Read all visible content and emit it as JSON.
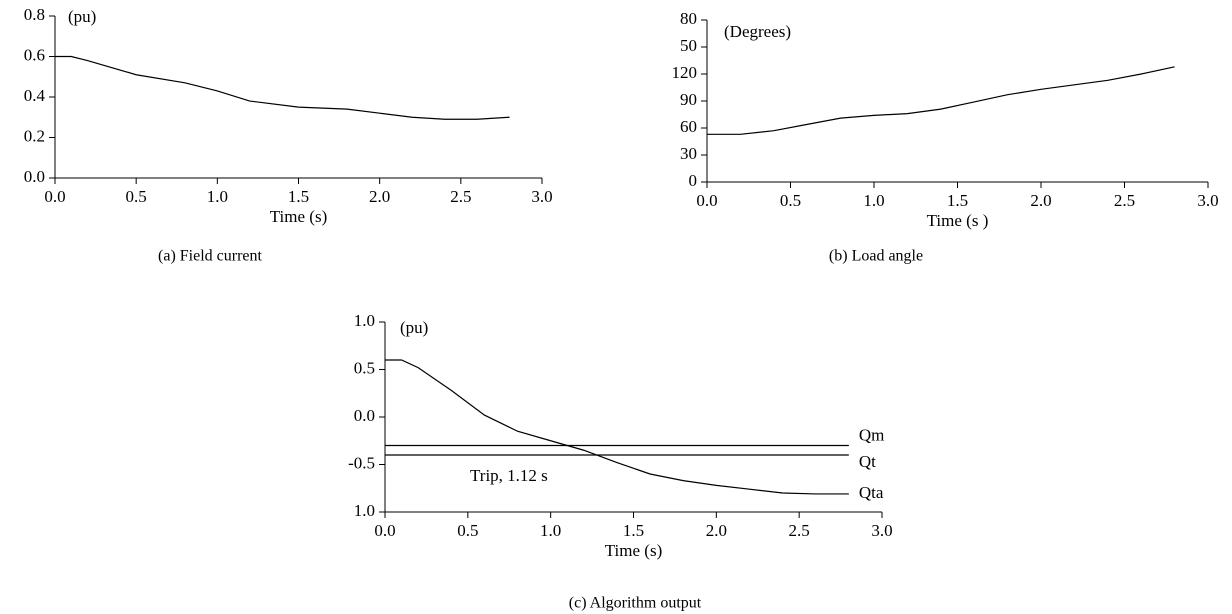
{
  "chart_data": [
    {
      "type": "line",
      "title": "(a) Field current",
      "ylabel": "(pu)",
      "xlabel": "Time (s)",
      "xlim": [
        0,
        3
      ],
      "ylim": [
        0,
        0.8
      ],
      "xticks": [
        {
          "value": 0,
          "label": "0.0"
        },
        0.5,
        {
          "value": 1,
          "label": "1.0"
        },
        1.5,
        {
          "value": 2,
          "label": "2.0"
        },
        2.5,
        {
          "value": 3,
          "label": "3.0"
        }
      ],
      "yticks": [
        {
          "value": 0,
          "label": "0.0"
        },
        0.2,
        0.4,
        0.6,
        0.8
      ],
      "series": [
        {
          "name": null,
          "color": "#000000",
          "x": [
            0,
            0.1,
            0.2,
            0.5,
            0.8,
            1.0,
            1.2,
            1.5,
            1.8,
            2.0,
            2.2,
            2.4,
            2.6,
            2.8
          ],
          "values": [
            0.6,
            0.6,
            0.58,
            0.51,
            0.47,
            0.43,
            0.38,
            0.35,
            0.34,
            0.32,
            0.3,
            0.29,
            0.29,
            0.3
          ]
        }
      ]
    },
    {
      "type": "line",
      "title": "(b) Load angle",
      "ylabel": "(Degrees)",
      "xlabel": "Time (s )",
      "xlim": [
        0,
        3
      ],
      "ylim": [
        0,
        180
      ],
      "xticks": [
        {
          "value": 0,
          "label": "0.0"
        },
        0.5,
        {
          "value": 1,
          "label": "1.0"
        },
        1.5,
        {
          "value": 2,
          "label": "2.0"
        },
        2.5,
        {
          "value": 3,
          "label": "3.0"
        }
      ],
      "yticks": [
        0,
        30,
        60,
        90,
        120,
        {
          "value": 150,
          "label": "50"
        },
        {
          "value": 180,
          "label": "80"
        }
      ],
      "series": [
        {
          "name": null,
          "color": "#000000",
          "x": [
            0,
            0.2,
            0.4,
            0.6,
            0.8,
            1.0,
            1.2,
            1.4,
            1.6,
            1.8,
            2.0,
            2.2,
            2.4,
            2.6,
            2.8
          ],
          "values": [
            53,
            53,
            57,
            64,
            71,
            74,
            76,
            81,
            89,
            97,
            103,
            108,
            113,
            120,
            128
          ]
        }
      ]
    },
    {
      "type": "line",
      "title": "(c) Algorithm output",
      "ylabel": "(pu)",
      "xlabel": "Time (s)",
      "annotation": "Trip, 1.12 s",
      "xlim": [
        0,
        3
      ],
      "ylim": [
        -1,
        1
      ],
      "xticks": [
        {
          "value": 0,
          "label": "0.0"
        },
        0.5,
        {
          "value": 1,
          "label": "1.0"
        },
        1.5,
        {
          "value": 2,
          "label": "2.0"
        },
        2.5,
        {
          "value": 3,
          "label": "3.0"
        }
      ],
      "yticks": [
        {
          "value": -1,
          "label": "1.0"
        },
        -0.5,
        {
          "value": 0,
          "label": "0.0"
        },
        0.5,
        {
          "value": 1,
          "label": "1.0"
        }
      ],
      "series": [
        {
          "name": "Qm",
          "color": "#000000",
          "x": [
            0,
            2.8
          ],
          "values": [
            -0.3,
            -0.3
          ]
        },
        {
          "name": "Qt",
          "color": "#000000",
          "x": [
            0,
            2.8
          ],
          "values": [
            -0.4,
            -0.4
          ]
        },
        {
          "name": "Qta",
          "color": "#000000",
          "x": [
            0,
            0.1,
            0.2,
            0.4,
            0.6,
            0.8,
            1.0,
            1.2,
            1.4,
            1.6,
            1.8,
            2.0,
            2.2,
            2.4,
            2.6,
            2.8
          ],
          "values": [
            0.6,
            0.6,
            0.52,
            0.28,
            0.02,
            -0.15,
            -0.25,
            -0.35,
            -0.48,
            -0.6,
            -0.67,
            -0.72,
            -0.76,
            -0.8,
            -0.81,
            -0.81
          ]
        }
      ]
    }
  ]
}
